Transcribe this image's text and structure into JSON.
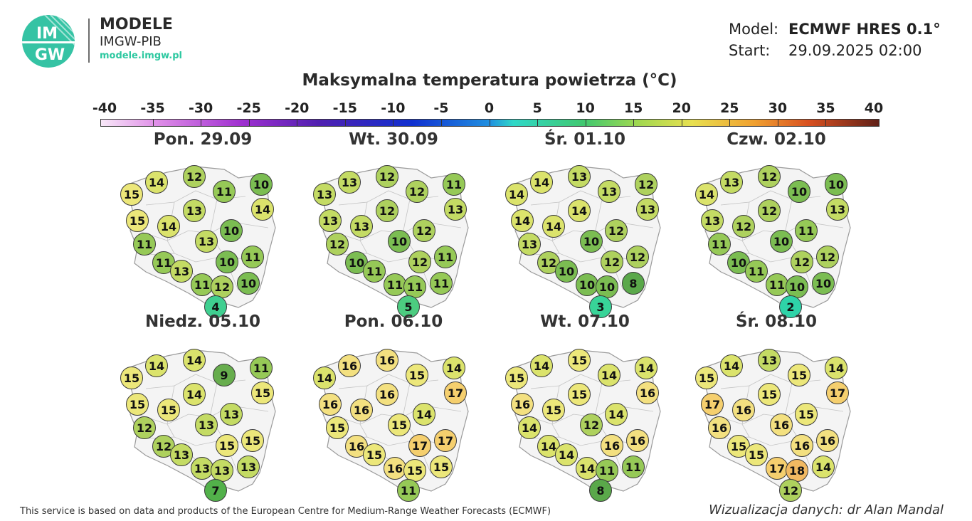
{
  "header": {
    "brand_line1": "MODELE",
    "brand_line2": "IMGW-PIB",
    "brand_url": "modele.imgw.pl",
    "logo_text_top": "IM",
    "logo_text_bottom": "GW",
    "model_label": "Model:",
    "model_value": "ECMWF HRES 0.1°",
    "start_label": "Start:",
    "start_value": "29.09.2025 02:00"
  },
  "title": "Maksymalna temperatura powietrza (°C)",
  "scale": {
    "labels": [
      "-40",
      "-35",
      "-30",
      "-25",
      "-20",
      "-15",
      "-10",
      "-5",
      "0",
      "5",
      "10",
      "15",
      "20",
      "25",
      "30",
      "35",
      "40"
    ],
    "min": -40,
    "max": 40
  },
  "panels": [
    {
      "label": "Pon. 29.09",
      "values": [
        15,
        14,
        12,
        11,
        10,
        15,
        14,
        13,
        10,
        14,
        11,
        11,
        13,
        10,
        11,
        13,
        11,
        12,
        10,
        4
      ]
    },
    {
      "label": "Wt. 30.09",
      "values": [
        13,
        13,
        12,
        12,
        11,
        13,
        13,
        12,
        12,
        13,
        12,
        10,
        10,
        12,
        11,
        11,
        11,
        11,
        11,
        5
      ]
    },
    {
      "label": "Śr. 01.10",
      "values": [
        14,
        14,
        13,
        13,
        12,
        14,
        14,
        14,
        12,
        13,
        13,
        12,
        10,
        12,
        12,
        10,
        10,
        10,
        8,
        3
      ]
    },
    {
      "label": "Czw. 02.10",
      "values": [
        14,
        13,
        12,
        10,
        10,
        13,
        12,
        12,
        11,
        13,
        11,
        10,
        10,
        12,
        12,
        11,
        11,
        10,
        10,
        2
      ]
    },
    {
      "label": "Niedz. 05.10",
      "values": [
        15,
        14,
        14,
        9,
        11,
        15,
        15,
        14,
        13,
        15,
        12,
        12,
        13,
        15,
        15,
        13,
        13,
        13,
        13,
        7
      ]
    },
    {
      "label": "Pon. 06.10",
      "values": [
        14,
        16,
        16,
        15,
        14,
        16,
        16,
        16,
        14,
        17,
        15,
        16,
        15,
        17,
        17,
        15,
        16,
        15,
        15,
        11
      ]
    },
    {
      "label": "Wt. 07.10",
      "values": [
        15,
        14,
        15,
        14,
        14,
        16,
        15,
        15,
        14,
        16,
        14,
        14,
        12,
        16,
        16,
        14,
        14,
        11,
        11,
        8
      ]
    },
    {
      "label": "Śr. 08.10",
      "values": [
        15,
        14,
        13,
        15,
        14,
        17,
        16,
        15,
        15,
        17,
        16,
        15,
        16,
        16,
        16,
        15,
        17,
        18,
        14,
        12
      ]
    }
  ],
  "footer": {
    "left": "This service is based on data and products of the European Centre for Medium-Range Weather Forecasts (ECMWF)",
    "right": "Wizualizacja danych: dr Alan Mandal"
  },
  "colors": {
    "t2": "#2ed3a8",
    "t3": "#38d498",
    "t4": "#3fcf90",
    "t5": "#4ccc80",
    "t7": "#52b14a",
    "t8": "#5aa84a",
    "t9": "#67ad4d",
    "t10": "#7bbd52",
    "t11": "#96c957",
    "t12": "#aed15e",
    "t13": "#c4db64",
    "t14": "#dbe36c",
    "t15": "#ece77a",
    "t16": "#f3e080",
    "t17": "#f5cf6e",
    "t18": "#f1b962"
  }
}
